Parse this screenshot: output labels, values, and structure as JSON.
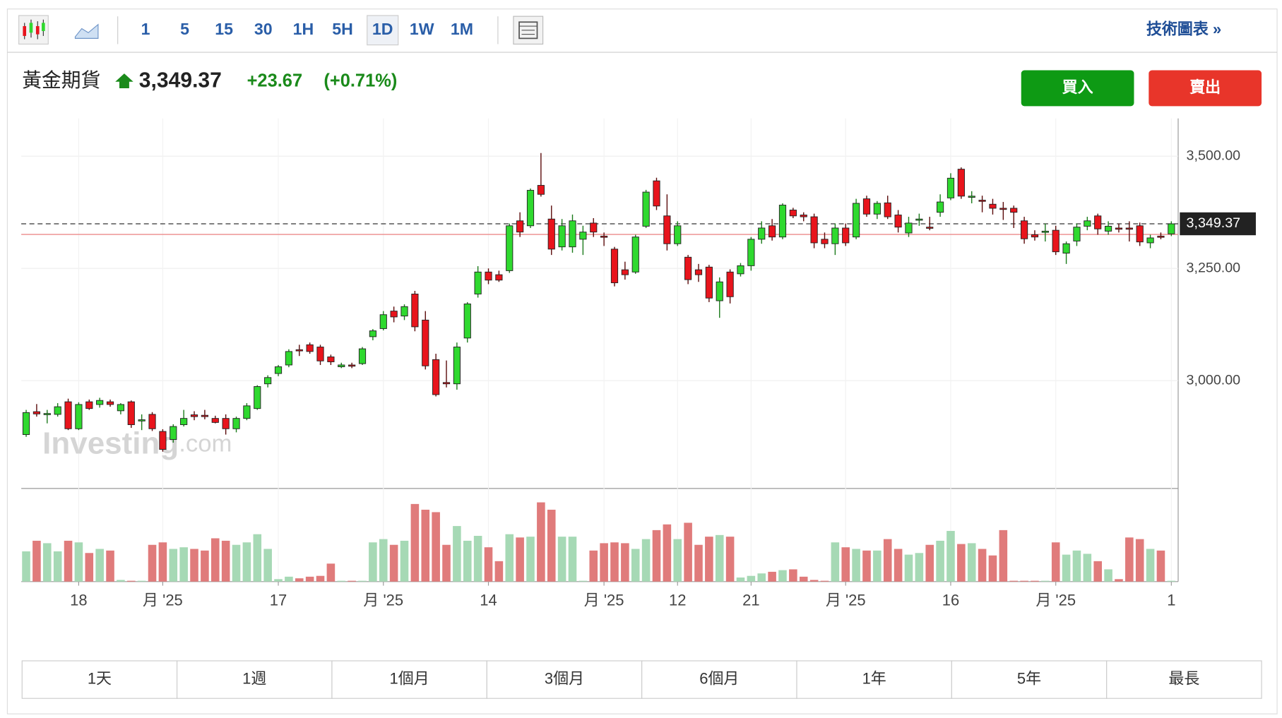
{
  "toolbar": {
    "intervals": [
      "1",
      "5",
      "15",
      "30",
      "1H",
      "5H",
      "1D",
      "1W",
      "1M"
    ],
    "active": "1D",
    "link": "技術圖表 »"
  },
  "header": {
    "name": "黃金期貨",
    "price": "3,349.37",
    "change": "+23.67",
    "change_pct": "(+0.71%)",
    "buy": "買入",
    "sell": "賣出"
  },
  "chart_data": {
    "type": "candlestick",
    "watermark": {
      "brand": "Investing",
      "suffix": ".com"
    },
    "up_color": "#2fd92f",
    "down_color": "#e8141c",
    "up_volume_color": "#a6d9b5",
    "down_volume_color": "#e07b7b",
    "ylim": [
      2760,
      3584
    ],
    "yticks": [
      {
        "value": 3000,
        "label": "3,000.00"
      },
      {
        "value": 3250,
        "label": "3,250.00"
      },
      {
        "value": 3500,
        "label": "3,500.00"
      }
    ],
    "last_price": {
      "value": 3349.37,
      "label": "3,349.37"
    },
    "reference_line": 3325.7,
    "xticks": [
      {
        "value": 5,
        "label": "18"
      },
      {
        "value": 13,
        "label": "月 '25"
      },
      {
        "value": 24,
        "label": "17"
      },
      {
        "value": 34,
        "label": "月 '25"
      },
      {
        "value": 44,
        "label": "14"
      },
      {
        "value": 55,
        "label": "月 '25"
      },
      {
        "value": 62,
        "label": "12"
      },
      {
        "value": 69,
        "label": "21"
      },
      {
        "value": 78,
        "label": "月 '25"
      },
      {
        "value": 88,
        "label": "16"
      },
      {
        "value": 98,
        "label": "月 '25"
      },
      {
        "value": 109,
        "label": "1"
      }
    ],
    "candles": [
      [
        2880,
        2935,
        2875,
        2929
      ],
      [
        2931,
        2948,
        2920,
        2926
      ],
      [
        2925,
        2935,
        2905,
        2927
      ],
      [
        2925,
        2950,
        2920,
        2942
      ],
      [
        2953,
        2960,
        2890,
        2893
      ],
      [
        2893,
        2952,
        2890,
        2947
      ],
      [
        2953,
        2958,
        2935,
        2938
      ],
      [
        2947,
        2962,
        2940,
        2956
      ],
      [
        2953,
        2958,
        2942,
        2947
      ],
      [
        2933,
        2950,
        2925,
        2947
      ],
      [
        2953,
        2956,
        2895,
        2902
      ],
      [
        2911,
        2925,
        2890,
        2913
      ],
      [
        2925,
        2930,
        2888,
        2893
      ],
      [
        2887,
        2892,
        2842,
        2847
      ],
      [
        2869,
        2903,
        2862,
        2898
      ],
      [
        2902,
        2935,
        2898,
        2916
      ],
      [
        2924,
        2932,
        2912,
        2920
      ],
      [
        2923,
        2935,
        2914,
        2920
      ],
      [
        2916,
        2922,
        2905,
        2907
      ],
      [
        2916,
        2925,
        2880,
        2893
      ],
      [
        2893,
        2920,
        2885,
        2916
      ],
      [
        2916,
        2950,
        2912,
        2944
      ],
      [
        2938,
        2990,
        2935,
        2987
      ],
      [
        2993,
        3012,
        2985,
        3007
      ],
      [
        3016,
        3035,
        3010,
        3031
      ],
      [
        3035,
        3070,
        3030,
        3065
      ],
      [
        3069,
        3080,
        3055,
        3067
      ],
      [
        3080,
        3085,
        3060,
        3065
      ],
      [
        3075,
        3080,
        3035,
        3044
      ],
      [
        3053,
        3058,
        3035,
        3042
      ],
      [
        3031,
        3040,
        3028,
        3035
      ],
      [
        3035,
        3040,
        3028,
        3033
      ],
      [
        3038,
        3075,
        3035,
        3071
      ],
      [
        3098,
        3115,
        3090,
        3111
      ],
      [
        3116,
        3155,
        3112,
        3147
      ],
      [
        3155,
        3165,
        3130,
        3142
      ],
      [
        3144,
        3170,
        3135,
        3165
      ],
      [
        3193,
        3200,
        3110,
        3120
      ],
      [
        3135,
        3155,
        3025,
        3033
      ],
      [
        3047,
        3060,
        2965,
        2969
      ],
      [
        2996,
        3045,
        2985,
        2993
      ],
      [
        2993,
        3085,
        2980,
        3075
      ],
      [
        3095,
        3175,
        3085,
        3171
      ],
      [
        3193,
        3255,
        3185,
        3242
      ],
      [
        3242,
        3250,
        3215,
        3224
      ],
      [
        3236,
        3245,
        3220,
        3224
      ],
      [
        3245,
        3350,
        3240,
        3345
      ],
      [
        3356,
        3375,
        3320,
        3331
      ],
      [
        3345,
        3428,
        3340,
        3424
      ],
      [
        3435,
        3507,
        3410,
        3415
      ],
      [
        3360,
        3390,
        3280,
        3293
      ],
      [
        3298,
        3360,
        3290,
        3345
      ],
      [
        3298,
        3370,
        3285,
        3356
      ],
      [
        3315,
        3345,
        3280,
        3331
      ],
      [
        3351,
        3362,
        3320,
        3331
      ],
      [
        3322,
        3330,
        3300,
        3320
      ],
      [
        3293,
        3298,
        3210,
        3218
      ],
      [
        3247,
        3265,
        3225,
        3236
      ],
      [
        3242,
        3325,
        3238,
        3320
      ],
      [
        3344,
        3425,
        3340,
        3420
      ],
      [
        3445,
        3452,
        3380,
        3389
      ],
      [
        3367,
        3415,
        3290,
        3305
      ],
      [
        3305,
        3355,
        3300,
        3345
      ],
      [
        3275,
        3280,
        3215,
        3225
      ],
      [
        3247,
        3260,
        3220,
        3236
      ],
      [
        3253,
        3258,
        3175,
        3184
      ],
      [
        3178,
        3230,
        3140,
        3220
      ],
      [
        3242,
        3248,
        3172,
        3187
      ],
      [
        3238,
        3262,
        3232,
        3256
      ],
      [
        3256,
        3320,
        3245,
        3315
      ],
      [
        3315,
        3355,
        3305,
        3340
      ],
      [
        3345,
        3360,
        3312,
        3320
      ],
      [
        3320,
        3395,
        3315,
        3391
      ],
      [
        3380,
        3385,
        3362,
        3367
      ],
      [
        3369,
        3375,
        3355,
        3365
      ],
      [
        3365,
        3372,
        3295,
        3307
      ],
      [
        3315,
        3330,
        3295,
        3305
      ],
      [
        3305,
        3350,
        3280,
        3340
      ],
      [
        3340,
        3350,
        3300,
        3307
      ],
      [
        3320,
        3405,
        3315,
        3395
      ],
      [
        3405,
        3412,
        3365,
        3371
      ],
      [
        3371,
        3400,
        3360,
        3395
      ],
      [
        3396,
        3412,
        3360,
        3365
      ],
      [
        3369,
        3380,
        3330,
        3342
      ],
      [
        3329,
        3365,
        3320,
        3351
      ],
      [
        3358,
        3372,
        3345,
        3360
      ],
      [
        3342,
        3365,
        3335,
        3340
      ],
      [
        3375,
        3415,
        3365,
        3398
      ],
      [
        3407,
        3462,
        3402,
        3451
      ],
      [
        3471,
        3475,
        3405,
        3411
      ],
      [
        3409,
        3422,
        3395,
        3411
      ],
      [
        3402,
        3412,
        3375,
        3400
      ],
      [
        3393,
        3405,
        3370,
        3384
      ],
      [
        3384,
        3398,
        3358,
        3382
      ],
      [
        3384,
        3390,
        3340,
        3375
      ],
      [
        3356,
        3365,
        3305,
        3316
      ],
      [
        3325,
        3335,
        3312,
        3320
      ],
      [
        3331,
        3350,
        3310,
        3333
      ],
      [
        3335,
        3345,
        3280,
        3287
      ],
      [
        3284,
        3310,
        3260,
        3305
      ],
      [
        3311,
        3350,
        3300,
        3342
      ],
      [
        3344,
        3365,
        3335,
        3356
      ],
      [
        3367,
        3372,
        3325,
        3338
      ],
      [
        3333,
        3355,
        3325,
        3344
      ],
      [
        3340,
        3350,
        3330,
        3338
      ],
      [
        3340,
        3355,
        3310,
        3338
      ],
      [
        3345,
        3352,
        3300,
        3309
      ],
      [
        3307,
        3325,
        3295,
        3318
      ],
      [
        3322,
        3330,
        3315,
        3320
      ],
      [
        3327,
        3355,
        3322,
        3349.37
      ]
    ],
    "volume": [
      37,
      50,
      47,
      37,
      50,
      48,
      35,
      40,
      38,
      2,
      1,
      1,
      45,
      48,
      40,
      42,
      40,
      38,
      53,
      50,
      45,
      48,
      58,
      40,
      3,
      6,
      4,
      6,
      7,
      22,
      1,
      1,
      1,
      48,
      52,
      45,
      50,
      95,
      88,
      85,
      45,
      68,
      50,
      56,
      42,
      25,
      58,
      54,
      55,
      97,
      88,
      55,
      55,
      1,
      38,
      47,
      48,
      47,
      40,
      52,
      63,
      70,
      52,
      72,
      45,
      55,
      57,
      55,
      5,
      7,
      10,
      12,
      14,
      15,
      6,
      2,
      1,
      48,
      42,
      40,
      38,
      38,
      52,
      40,
      33,
      35,
      45,
      50,
      62,
      46,
      47,
      40,
      32,
      63,
      1,
      1,
      1,
      1,
      48,
      33,
      38,
      34,
      25,
      15,
      3,
      54,
      52,
      40,
      38,
      1
    ]
  },
  "ranges": [
    "1天",
    "1週",
    "1個月",
    "3個月",
    "6個月",
    "1年",
    "5年",
    "最長"
  ]
}
